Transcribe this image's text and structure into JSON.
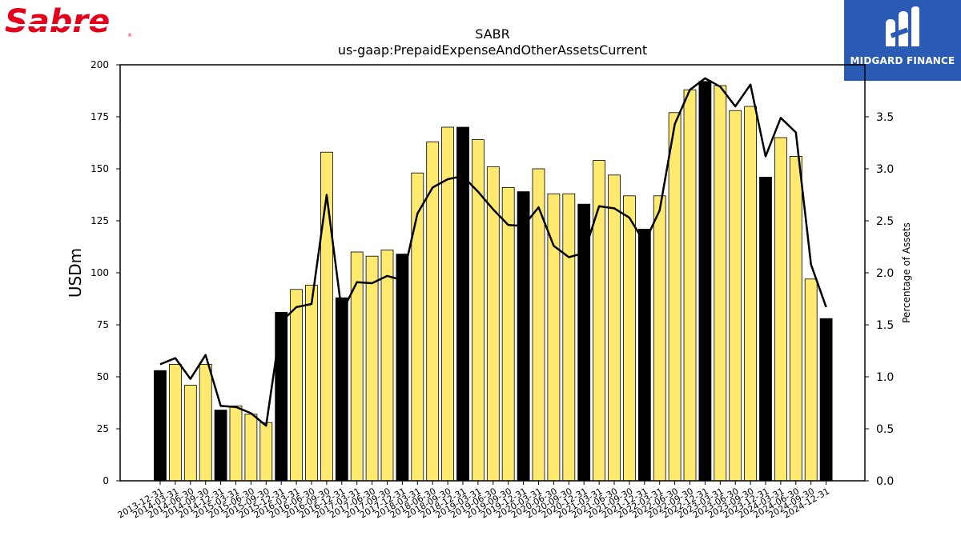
{
  "brand": {
    "logo_text": "Sabre",
    "badge_text": "MIDGARD FINANCE"
  },
  "chart_data": {
    "type": "bar",
    "title": "SABR",
    "subtitle": "us-gaap:PrepaidExpenseAndOtherAssetsCurrent",
    "ylabel": "USDm",
    "y2label": "Percentage of Assets",
    "ylim": [
      0,
      200
    ],
    "y2lim": [
      0,
      4.0
    ],
    "yticks": [
      0,
      25,
      50,
      75,
      100,
      125,
      150,
      175,
      200
    ],
    "y2ticks": [
      0.0,
      0.5,
      1.0,
      1.5,
      2.0,
      2.5,
      3.0,
      3.5
    ],
    "categories": [
      "2013-12-31",
      "2014-03-31",
      "2014-06-30",
      "2014-09-30",
      "2014-12-31",
      "2015-03-31",
      "2015-06-30",
      "2015-09-30",
      "2015-12-31",
      "2016-03-31",
      "2016-06-30",
      "2016-09-30",
      "2016-12-31",
      "2017-03-31",
      "2017-06-30",
      "2017-09-30",
      "2017-12-31",
      "2018-03-31",
      "2018-06-30",
      "2018-09-30",
      "2018-12-31",
      "2019-03-31",
      "2019-06-30",
      "2019-09-30",
      "2019-12-31",
      "2020-03-31",
      "2020-06-30",
      "2020-09-30",
      "2020-12-31",
      "2021-03-31",
      "2021-06-30",
      "2021-09-30",
      "2021-12-31",
      "2022-03-31",
      "2022-06-30",
      "2022-09-30",
      "2022-12-31",
      "2023-03-31",
      "2023-06-30",
      "2023-09-30",
      "2023-12-31",
      "2024-03-31",
      "2024-06-30",
      "2024-09-30",
      "2024-12-31"
    ],
    "series": [
      {
        "type": "bar",
        "values": [
          53,
          56,
          46,
          56,
          34,
          36,
          32,
          28,
          81,
          92,
          94,
          158,
          88,
          110,
          108,
          111,
          109,
          148,
          163,
          170,
          170,
          164,
          151,
          141,
          139,
          150,
          138,
          138,
          133,
          154,
          147,
          137,
          121,
          137,
          177,
          188,
          192,
          190,
          178,
          180,
          146,
          165,
          156,
          97,
          78
        ],
        "colors": {
          "annual": "#000000",
          "quarter": "#ffe96e"
        }
      },
      {
        "type": "line",
        "axis": "right",
        "values": [
          1.12,
          1.18,
          0.98,
          1.21,
          0.72,
          0.71,
          0.65,
          0.53,
          1.53,
          1.67,
          1.7,
          2.75,
          1.62,
          1.91,
          1.9,
          1.97,
          1.93,
          2.57,
          2.82,
          2.9,
          2.93,
          2.78,
          2.61,
          2.46,
          2.45,
          2.63,
          2.26,
          2.15,
          2.19,
          2.64,
          2.62,
          2.53,
          2.29,
          2.6,
          3.43,
          3.76,
          3.87,
          3.79,
          3.6,
          3.81,
          3.12,
          3.49,
          3.35,
          2.08,
          1.67
        ],
        "color": "#000000"
      }
    ],
    "grid": false,
    "legend": "none"
  }
}
